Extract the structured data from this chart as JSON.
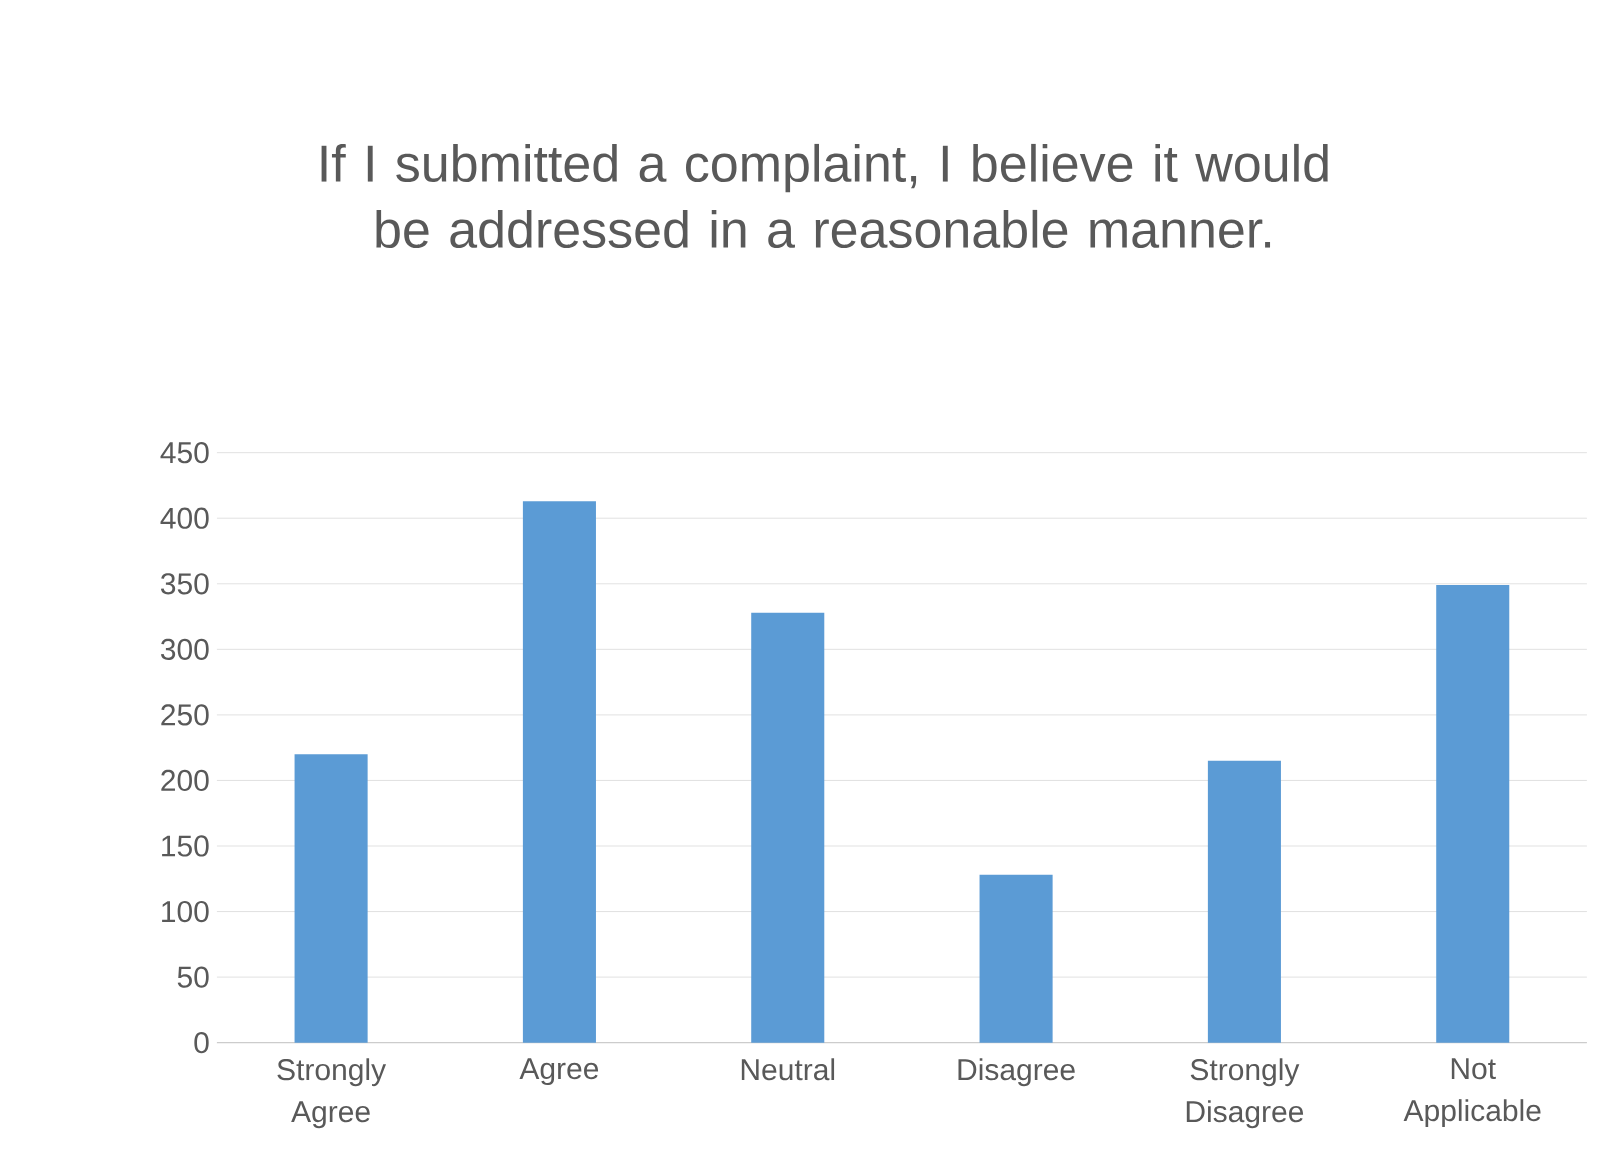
{
  "chart_data": {
    "type": "bar",
    "title": "If I submitted a complaint, I believe it would be addressed in a reasonable manner.",
    "categories": [
      "Strongly Agree",
      "Agree",
      "Neutral",
      "Disagree",
      "Strongly Disagree",
      "Not Applicable"
    ],
    "values": [
      220,
      413,
      328,
      128,
      215,
      349
    ],
    "color": "#5b9bd5",
    "ylim": [
      0,
      450
    ],
    "yticks": [
      0,
      50,
      100,
      150,
      200,
      250,
      300,
      350,
      400,
      450
    ],
    "grid": "y"
  }
}
